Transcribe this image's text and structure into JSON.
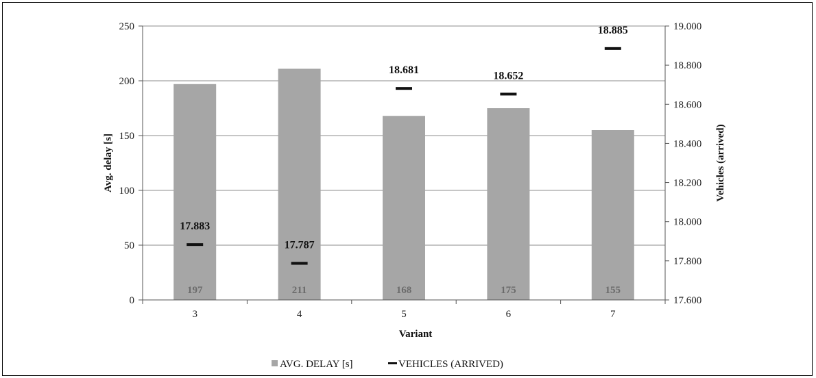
{
  "chart_data": {
    "type": "bar",
    "categories": [
      "3",
      "4",
      "5",
      "6",
      "7"
    ],
    "xlabel": "Variant",
    "ylabel": "Avg. delay [s]",
    "y2label": "Vehicles (arrived)",
    "ylim": [
      0,
      250
    ],
    "yticks": [
      "0",
      "50",
      "100",
      "150",
      "200",
      "250"
    ],
    "y2lim": [
      17600,
      19000
    ],
    "y2ticks": [
      "17.600",
      "17.800",
      "18.000",
      "18.200",
      "18.400",
      "18.600",
      "18.800",
      "19.000"
    ],
    "grid": true,
    "legend_position": "bottom",
    "series": [
      {
        "name": "AVG. DELAY [s]",
        "kind": "bar",
        "axis": "left",
        "color": "#a6a6a6",
        "values": [
          197,
          211,
          168,
          175,
          155
        ],
        "labels": [
          "197",
          "211",
          "168",
          "175",
          "155"
        ]
      },
      {
        "name": "VEHICLES (ARRIVED)",
        "kind": "marker-dash",
        "axis": "right",
        "color": "#111111",
        "values": [
          17883,
          17787,
          18681,
          18652,
          18885
        ],
        "labels": [
          "17.883",
          "17.787",
          "18.681",
          "18.652",
          "18.885"
        ]
      }
    ]
  }
}
